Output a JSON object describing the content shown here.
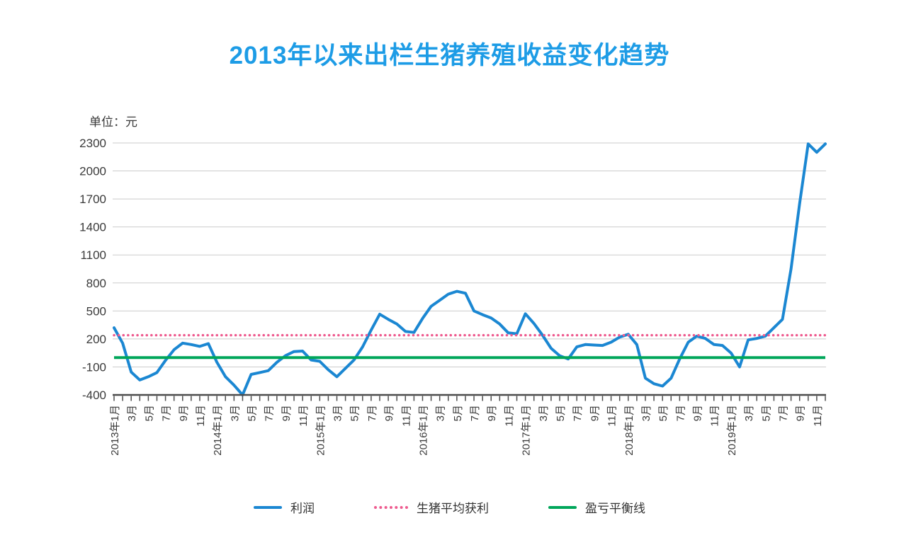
{
  "title": "2013年以来出栏生猪养殖收益变化趋势",
  "unit_label": "单位：元",
  "colors": {
    "title": "#1d9ce6",
    "profit_line": "#1b87d2",
    "avg_profit_line": "#ee5b8f",
    "breakeven_line": "#00a65a",
    "gridline": "#cbcbcb",
    "axis": "#4c4c4c",
    "tick_text": "#3a3a3a"
  },
  "legend": {
    "items": [
      {
        "label": "利润",
        "style": "solid",
        "color": "#1b87d2"
      },
      {
        "label": "生猪平均获利",
        "style": "dotted",
        "color": "#ee5b8f"
      },
      {
        "label": "盈亏平衡线",
        "style": "solid",
        "color": "#00a65a"
      }
    ]
  },
  "chart_data": {
    "type": "line",
    "title": "2013年以来出栏生猪养殖收益变化趋势",
    "ylabel": "元",
    "ylim": [
      -400,
      2300
    ],
    "y_ticks": [
      2300,
      2000,
      1700,
      1400,
      1100,
      800,
      500,
      200,
      -100,
      -400
    ],
    "grid": true,
    "legend_position": "bottom",
    "n_points": 84,
    "x_tick_every": 2,
    "x_tick_labels": [
      "2013年1月",
      "3月",
      "5月",
      "7月",
      "9月",
      "11月",
      "2014年1月",
      "3月",
      "5月",
      "7月",
      "9月",
      "11月",
      "2015年1月",
      "3月",
      "5月",
      "7月",
      "9月",
      "11月",
      "2016年1月",
      "3月",
      "5月",
      "7月",
      "9月",
      "11月",
      "2017年1月",
      "3月",
      "5月",
      "7月",
      "9月",
      "11月",
      "2018年1月",
      "3月",
      "5月",
      "7月",
      "9月",
      "11月",
      "2019年1月",
      "3月",
      "5月",
      "7月",
      "9月",
      "11月"
    ],
    "series": [
      {
        "name": "利润",
        "type": "line",
        "color": "#1b87d2",
        "values": [
          320,
          155,
          -155,
          -240,
          -205,
          -160,
          -30,
          85,
          155,
          140,
          120,
          150,
          -50,
          -205,
          -295,
          -400,
          -180,
          -160,
          -140,
          -50,
          20,
          65,
          70,
          -25,
          -40,
          -130,
          -205,
          -115,
          -25,
          115,
          295,
          465,
          410,
          360,
          280,
          270,
          420,
          550,
          615,
          680,
          710,
          690,
          500,
          460,
          425,
          360,
          265,
          255,
          470,
          365,
          240,
          100,
          20,
          -15,
          115,
          140,
          135,
          130,
          165,
          220,
          250,
          140,
          -220,
          -280,
          -305,
          -220,
          -15,
          165,
          230,
          205,
          140,
          130,
          50,
          -100,
          190,
          205,
          230,
          320,
          410,
          950,
          1650,
          2290,
          2200,
          2290
        ]
      },
      {
        "name": "生猪平均获利",
        "type": "constant-line",
        "style": "dotted",
        "color": "#ee5b8f",
        "value": 240
      },
      {
        "name": "盈亏平衡线",
        "type": "constant-line",
        "style": "solid",
        "color": "#00a65a",
        "value": 0
      }
    ]
  }
}
